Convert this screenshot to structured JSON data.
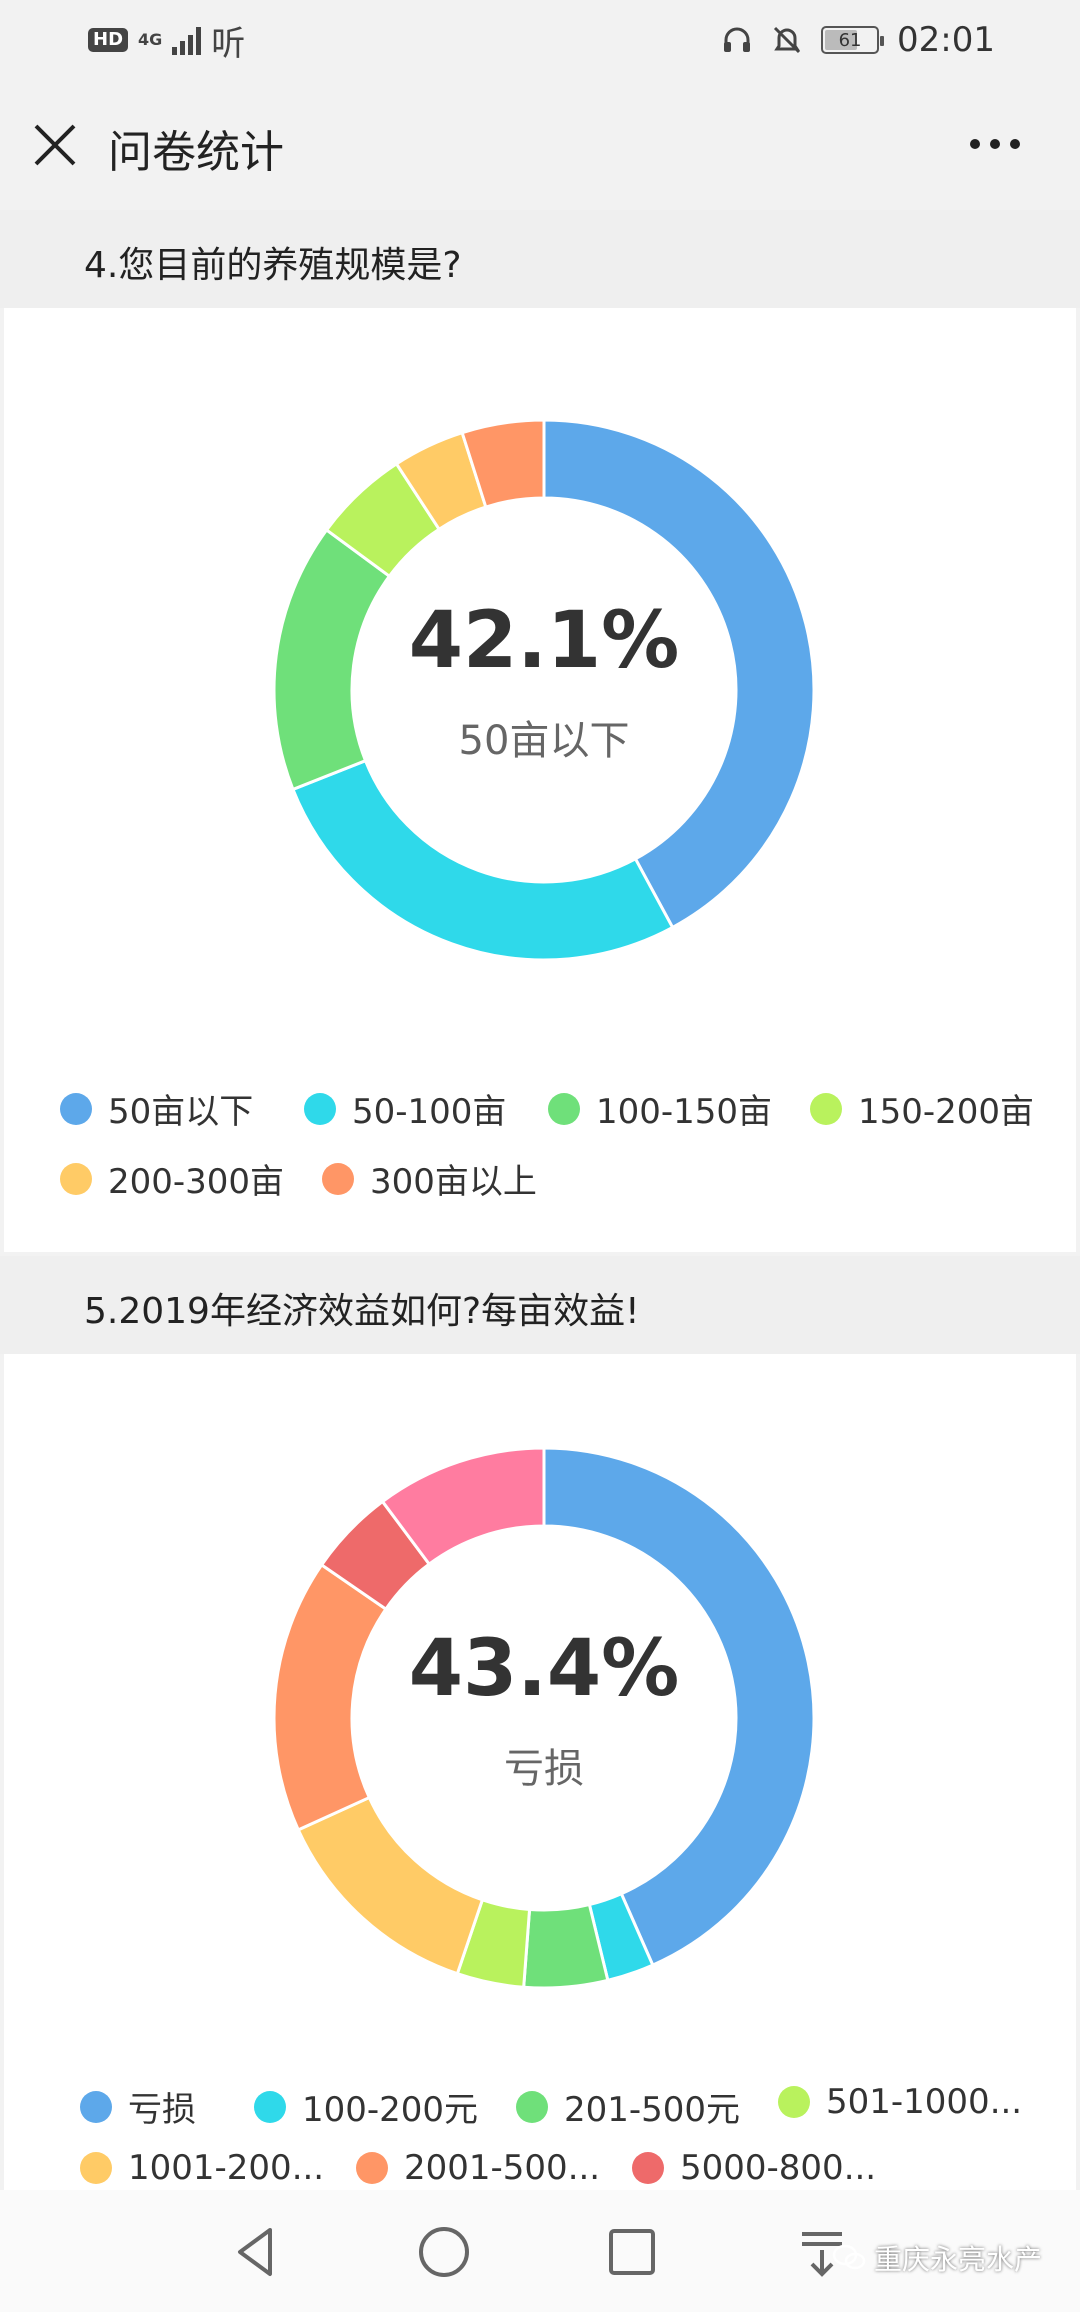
{
  "status_bar": {
    "hd": "HD",
    "network": "4G",
    "carrier_app": "听",
    "battery": "61",
    "time": "02:01"
  },
  "app_bar": {
    "title": "问卷统计"
  },
  "questions": [
    {
      "title": "4.您目前的养殖规模是?",
      "center_percent": "42.1%",
      "center_label": "50亩以下",
      "legend": [
        {
          "label": "50亩以下",
          "color": "#5DA8EA"
        },
        {
          "label": "50-100亩",
          "color": "#2FD9EA"
        },
        {
          "label": "100-150亩",
          "color": "#6FE07A"
        },
        {
          "label": "150-200亩",
          "color": "#B9F25D"
        },
        {
          "label": "200-300亩",
          "color": "#FFCB66"
        },
        {
          "label": "300亩以上",
          "color": "#FF9666"
        }
      ]
    },
    {
      "title": "5.2019年经济效益如何?每亩效益!",
      "center_percent": "43.4%",
      "center_label": "亏损",
      "legend": [
        {
          "label": "亏损",
          "color": "#5DA8EA"
        },
        {
          "label": "100-200元",
          "color": "#2FD9EA"
        },
        {
          "label": "201-500元",
          "color": "#6FE07A"
        },
        {
          "label": "501-1000...",
          "color": "#B9F25D"
        },
        {
          "label": "1001-200...",
          "color": "#FFCB66"
        },
        {
          "label": "2001-500...",
          "color": "#FF9666"
        },
        {
          "label": "5000-800...",
          "color": "#EE6A6A"
        }
      ]
    }
  ],
  "chart_data": [
    {
      "type": "pie",
      "title": "4.您目前的养殖规模是?",
      "categories": [
        "50亩以下",
        "50-100亩",
        "100-150亩",
        "150-200亩",
        "200-300亩",
        "300亩以上"
      ],
      "values": [
        42.1,
        26.9,
        16.1,
        5.7,
        4.3,
        4.9
      ],
      "colors": [
        "#5DA8EA",
        "#2FD9EA",
        "#6FE07A",
        "#B9F25D",
        "#FFCB66",
        "#FF9666"
      ],
      "legend": "bottom"
    },
    {
      "type": "pie",
      "title": "5.2019年经济效益如何?每亩效益!",
      "categories": [
        "亏损",
        "100-200元",
        "201-500元",
        "501-1000...",
        "1001-200...",
        "2001-500...",
        "5000-800...",
        ""
      ],
      "values": [
        43.4,
        2.8,
        5.0,
        4.0,
        13.0,
        16.4,
        5.2,
        10.2
      ],
      "colors": [
        "#5DA8EA",
        "#2FD9EA",
        "#6FE07A",
        "#B9F25D",
        "#FFCB66",
        "#FF9666",
        "#EE6A6A",
        "#FF7CA0"
      ],
      "legend": "bottom"
    }
  ],
  "watermark": "重庆永亮水产"
}
